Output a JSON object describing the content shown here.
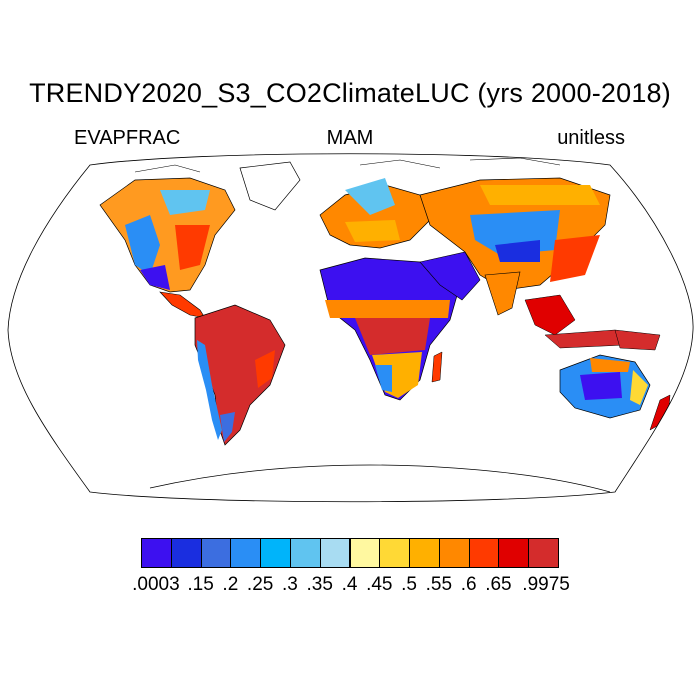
{
  "title": "TRENDY2020_S3_CO2ClimateLUC (yrs 2000-2018)",
  "variable": "EVAPFRAC",
  "season": "MAM",
  "units": "unitless",
  "colorbar": {
    "colors": [
      "#3d10f0",
      "#1a2ee0",
      "#3c6ee0",
      "#2a8ef5",
      "#00b4fa",
      "#60c4f0",
      "#a8dcf2",
      "#fff8a0",
      "#ffd935",
      "#ffb000",
      "#ff8800",
      "#ff3a00",
      "#e00000",
      "#d42c2c"
    ],
    "labels": [
      ".0003",
      ".15",
      ".2",
      ".25",
      ".3",
      ".35",
      ".4",
      ".45",
      ".5",
      ".55",
      ".6",
      ".65",
      ".9975"
    ]
  }
}
